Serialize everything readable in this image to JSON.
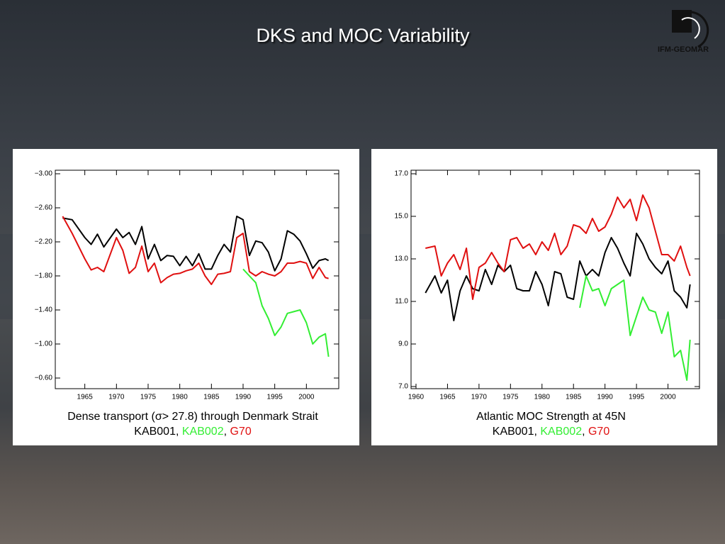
{
  "title": "DKS and MOC Variability",
  "logo": "IFM-GEOMAR",
  "legend_separator": ", ",
  "chart_data": [
    {
      "type": "line",
      "title": "Dense transport (σ> 27.8) through Denmark Strait",
      "y_inverted": true,
      "xlim": [
        1960,
        2005
      ],
      "xticks": [
        1965,
        1970,
        1975,
        1980,
        1985,
        1990,
        1995,
        2000
      ],
      "ylim": [
        -3.0,
        -0.6
      ],
      "yticks": [
        {
          "value": -3.0,
          "label": "−3.00"
        },
        {
          "value": -2.6,
          "label": "−2.60"
        },
        {
          "value": -2.2,
          "label": "−2.20"
        },
        {
          "value": -1.8,
          "label": "−1.80"
        },
        {
          "value": -1.4,
          "label": "−1.40"
        },
        {
          "value": -1.0,
          "label": "−1.00"
        },
        {
          "value": -0.6,
          "label": "−0.60"
        }
      ],
      "series": [
        {
          "name": "KAB001",
          "color": "#000000",
          "x": [
            1961.5,
            1963,
            1965,
            1966,
            1967,
            1968,
            1970,
            1971,
            1972,
            1973,
            1974,
            1975,
            1976,
            1977,
            1978,
            1979,
            1980,
            1981,
            1982,
            1983,
            1984,
            1985,
            1986,
            1987,
            1988,
            1989,
            1990,
            1991,
            1992,
            1993,
            1994,
            1995,
            1996,
            1997,
            1998,
            1999,
            2000,
            2001,
            2002,
            2003,
            2003.5
          ],
          "values": [
            -2.48,
            -2.46,
            -2.25,
            -2.17,
            -2.29,
            -2.14,
            -2.35,
            -2.25,
            -2.31,
            -2.17,
            -2.38,
            -2.0,
            -2.17,
            -1.98,
            -2.04,
            -2.03,
            -1.92,
            -2.03,
            -1.92,
            -2.06,
            -1.88,
            -1.88,
            -2.04,
            -2.17,
            -2.08,
            -2.5,
            -2.46,
            -2.04,
            -2.21,
            -2.19,
            -2.08,
            -1.86,
            -2.0,
            -2.33,
            -2.29,
            -2.21,
            -2.06,
            -1.89,
            -1.98,
            -2.0,
            -1.98
          ]
        },
        {
          "name": "KAB002",
          "color": "#33ee33",
          "x": [
            1990,
            1991,
            1992,
            1993,
            1994,
            1995,
            1996,
            1997,
            1998,
            1999,
            2000,
            2001,
            2002,
            2003,
            2003.5
          ],
          "values": [
            -1.88,
            -1.8,
            -1.72,
            -1.45,
            -1.3,
            -1.1,
            -1.2,
            -1.36,
            -1.38,
            -1.4,
            -1.25,
            -1.0,
            -1.08,
            -1.12,
            -0.85
          ]
        },
        {
          "name": "G70",
          "color": "#e01010",
          "x": [
            1961.5,
            1963,
            1965,
            1966,
            1967,
            1968,
            1970,
            1971,
            1972,
            1973,
            1974,
            1975,
            1976,
            1977,
            1978,
            1979,
            1980,
            1981,
            1982,
            1983,
            1984,
            1985,
            1986,
            1987,
            1988,
            1989,
            1990,
            1991,
            1992,
            1993,
            1994,
            1995,
            1996,
            1997,
            1998,
            1999,
            2000,
            2001,
            2002,
            2003,
            2003.5
          ],
          "values": [
            -2.5,
            -2.3,
            -2.0,
            -1.87,
            -1.9,
            -1.85,
            -2.25,
            -2.1,
            -1.83,
            -1.9,
            -2.15,
            -1.85,
            -1.95,
            -1.72,
            -1.78,
            -1.82,
            -1.83,
            -1.86,
            -1.88,
            -1.95,
            -1.8,
            -1.7,
            -1.82,
            -1.83,
            -1.85,
            -2.25,
            -2.3,
            -1.85,
            -1.8,
            -1.85,
            -1.82,
            -1.8,
            -1.85,
            -1.95,
            -1.95,
            -1.97,
            -1.95,
            -1.77,
            -1.9,
            -1.78,
            -1.77
          ]
        }
      ]
    },
    {
      "type": "line",
      "title": "Atlantic MOC Strength at 45N",
      "y_inverted": false,
      "xlim": [
        1960,
        2005
      ],
      "xticks": [
        1960,
        1965,
        1970,
        1975,
        1980,
        1985,
        1990,
        1995,
        2000
      ],
      "ylim": [
        7,
        17
      ],
      "yticks": [
        {
          "value": 7,
          "label": "7.0"
        },
        {
          "value": 9,
          "label": "9.0"
        },
        {
          "value": 11,
          "label": "11.0"
        },
        {
          "value": 13,
          "label": "13.0"
        },
        {
          "value": 15,
          "label": "15.0"
        },
        {
          "value": 17,
          "label": "17.0"
        }
      ],
      "series": [
        {
          "name": "KAB001",
          "color": "#000000",
          "x": [
            1961.5,
            1963,
            1964,
            1965,
            1966,
            1967,
            1968,
            1969,
            1970,
            1971,
            1972,
            1973,
            1974,
            1975,
            1976,
            1977,
            1978,
            1979,
            1980,
            1981,
            1982,
            1983,
            1984,
            1985,
            1986,
            1987,
            1988,
            1989,
            1990,
            1991,
            1992,
            1993,
            1994,
            1995,
            1996,
            1997,
            1998,
            1999,
            2000,
            2001,
            2002,
            2003,
            2003.5
          ],
          "values": [
            11.4,
            12.2,
            11.4,
            12.0,
            10.1,
            11.5,
            12.2,
            11.6,
            11.5,
            12.5,
            11.8,
            12.7,
            12.4,
            12.7,
            11.6,
            11.5,
            11.5,
            12.4,
            11.8,
            10.8,
            12.4,
            12.3,
            11.2,
            11.1,
            12.9,
            12.2,
            12.5,
            12.2,
            13.3,
            14.0,
            13.5,
            12.8,
            12.2,
            14.2,
            13.7,
            13.0,
            12.6,
            12.3,
            12.9,
            11.5,
            11.2,
            10.7,
            11.8
          ]
        },
        {
          "name": "KAB002",
          "color": "#33ee33",
          "x": [
            1986,
            1987,
            1988,
            1989,
            1990,
            1991,
            1992,
            1993,
            1994,
            1995,
            1996,
            1997,
            1998,
            1999,
            2000,
            2001,
            2002,
            2003,
            2003.5
          ],
          "values": [
            10.7,
            12.2,
            11.5,
            11.6,
            10.8,
            11.6,
            11.8,
            12.0,
            9.4,
            10.3,
            11.2,
            10.6,
            10.5,
            9.5,
            10.5,
            8.4,
            8.7,
            7.3,
            9.2
          ]
        },
        {
          "name": "G70",
          "color": "#e01010",
          "x": [
            1961.5,
            1963,
            1964,
            1965,
            1966,
            1967,
            1968,
            1969,
            1970,
            1971,
            1972,
            1973,
            1974,
            1975,
            1976,
            1977,
            1978,
            1979,
            1980,
            1981,
            1982,
            1983,
            1984,
            1985,
            1986,
            1987,
            1988,
            1989,
            1990,
            1991,
            1992,
            1993,
            1994,
            1995,
            1996,
            1997,
            1998,
            1999,
            2000,
            2001,
            2002,
            2003,
            2003.5
          ],
          "values": [
            13.5,
            13.6,
            12.2,
            12.8,
            13.2,
            12.5,
            13.5,
            11.1,
            12.6,
            12.8,
            13.3,
            12.8,
            12.4,
            13.9,
            14.0,
            13.5,
            13.7,
            13.2,
            13.8,
            13.4,
            14.2,
            13.2,
            13.6,
            14.6,
            14.5,
            14.2,
            14.9,
            14.3,
            14.5,
            15.1,
            15.9,
            15.4,
            15.8,
            14.8,
            16.0,
            15.4,
            14.3,
            13.2,
            13.2,
            12.9,
            13.6,
            12.6,
            12.2
          ]
        }
      ]
    }
  ]
}
